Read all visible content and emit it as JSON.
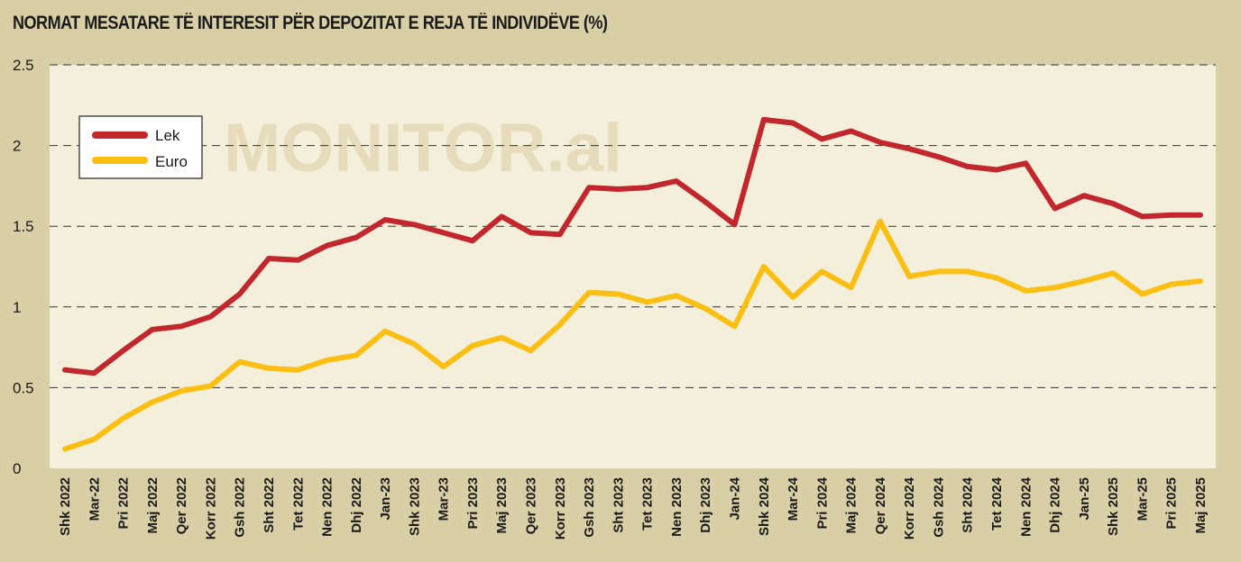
{
  "watermark": "MONITOR.al",
  "chart_data": {
    "type": "line",
    "title": "NORMAT MESATARE TË INTERESIT PËR DEPOZITAT E REJA TË INDIVIDËVE (%)",
    "xlabel": "",
    "ylabel": "",
    "ylim": [
      0,
      2.5
    ],
    "yticks": [
      "0",
      "0.5",
      "1",
      "1.5",
      "2",
      "2.5"
    ],
    "grid": "horizontal dashed",
    "legend_position": "top-left",
    "categories": [
      "Shk 2022",
      "Mar-22",
      "Pri 2022",
      "Maj 2022",
      "Qer 2022",
      "Korr 2022",
      "Gsh 2022",
      "Sht 2022",
      "Tet 2022",
      "Nen 2022",
      "Dhj 2022",
      "Jan-23",
      "Shk 2023",
      "Mar-23",
      "Pri 2023",
      "Maj 2023",
      "Qer 2023",
      "Korr 2023",
      "Gsh 2023",
      "Sht 2023",
      "Tet 2023",
      "Nen 2023",
      "Dhj 2023",
      "Jan-24",
      "Shk 2024",
      "Mar-24",
      "Pri 2024",
      "Maj 2024",
      "Qer 2024",
      "Korr 2024",
      "Gsh 2024",
      "Sht 2024",
      "Tet 2024",
      "Nen 2024",
      "Dhj 2024",
      "Jan-25",
      "Shk 2025",
      "Mar-25",
      "Pri 2025",
      "Maj 2025"
    ],
    "series": [
      {
        "name": "Lek",
        "color": "#c1272d",
        "values": [
          0.61,
          0.59,
          0.73,
          0.86,
          0.88,
          0.94,
          1.08,
          1.3,
          1.29,
          1.38,
          1.43,
          1.54,
          1.51,
          1.46,
          1.41,
          1.56,
          1.46,
          1.45,
          1.74,
          1.73,
          1.74,
          1.78,
          1.65,
          1.51,
          2.16,
          2.14,
          2.04,
          2.09,
          2.02,
          1.98,
          1.93,
          1.87,
          1.85,
          1.89,
          1.61,
          1.69,
          1.64,
          1.56,
          1.57,
          1.57
        ]
      },
      {
        "name": "Euro",
        "color": "#fbbf14",
        "values": [
          0.12,
          0.18,
          0.31,
          0.41,
          0.48,
          0.51,
          0.66,
          0.62,
          0.61,
          0.67,
          0.7,
          0.85,
          0.77,
          0.63,
          0.76,
          0.81,
          0.73,
          0.89,
          1.09,
          1.08,
          1.03,
          1.07,
          0.99,
          0.88,
          1.25,
          1.06,
          1.22,
          1.12,
          1.53,
          1.19,
          1.22,
          1.22,
          1.18,
          1.1,
          1.12,
          1.16,
          1.21,
          1.08,
          1.14,
          1.16
        ]
      }
    ]
  }
}
